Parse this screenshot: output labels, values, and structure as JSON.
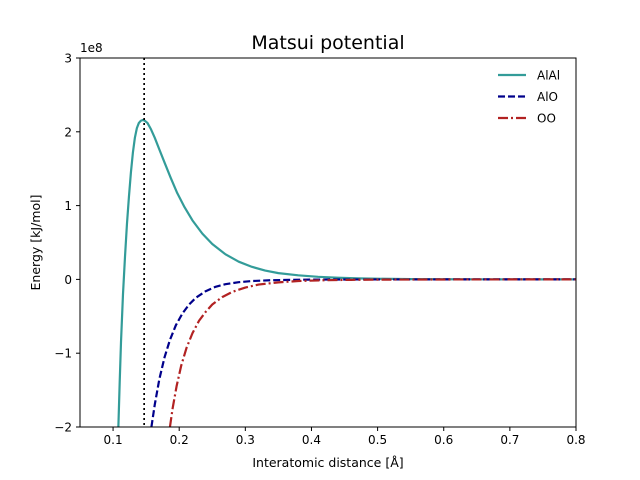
{
  "chart_data": {
    "type": "line",
    "title": "Matsui potential",
    "xlabel": "Interatomic distance [Å]",
    "ylabel": "Energy [kJ/mol]",
    "y_offset_text": "1e8",
    "xlim": [
      0.05,
      0.8
    ],
    "ylim": [
      -2,
      3
    ],
    "y_scale_factor": 100000000,
    "x_ticks": [
      0.1,
      0.2,
      0.3,
      0.4,
      0.5,
      0.6,
      0.7,
      0.8
    ],
    "x_tick_labels": [
      "0.1",
      "0.2",
      "0.3",
      "0.4",
      "0.5",
      "0.6",
      "0.7",
      "0.8"
    ],
    "y_ticks": [
      -2,
      -1,
      0,
      1,
      2,
      3
    ],
    "y_tick_labels": [
      "−2",
      "−1",
      "0",
      "1",
      "2",
      "3"
    ],
    "grid": false,
    "legend_position": "top-right",
    "vline_x": 0.147,
    "series": [
      {
        "name": "AlAl",
        "color": "#339c99",
        "dash": "solid",
        "x": [
          0.108,
          0.11,
          0.112,
          0.115,
          0.118,
          0.121,
          0.124,
          0.127,
          0.13,
          0.133,
          0.136,
          0.139,
          0.142,
          0.145,
          0.148,
          0.152,
          0.157,
          0.163,
          0.17,
          0.178,
          0.187,
          0.197,
          0.208,
          0.22,
          0.235,
          0.25,
          0.27,
          0.29,
          0.31,
          0.33,
          0.35,
          0.38,
          0.41,
          0.44,
          0.47,
          0.5,
          0.55,
          0.6,
          0.65,
          0.7,
          0.75,
          0.8
        ],
        "y": [
          -2.0,
          -1.4,
          -0.85,
          -0.2,
          0.3,
          0.75,
          1.12,
          1.45,
          1.72,
          1.92,
          2.05,
          2.12,
          2.15,
          2.16,
          2.15,
          2.12,
          2.04,
          1.92,
          1.76,
          1.58,
          1.38,
          1.17,
          0.98,
          0.8,
          0.62,
          0.48,
          0.34,
          0.24,
          0.17,
          0.12,
          0.085,
          0.055,
          0.035,
          0.022,
          0.014,
          0.009,
          0.004,
          0.002,
          0.001,
          0.0005,
          0.0002,
          0.0001
        ]
      },
      {
        "name": "AlO",
        "color": "#00008b",
        "dash": "dashed",
        "x": [
          0.158,
          0.163,
          0.17,
          0.178,
          0.186,
          0.195,
          0.205,
          0.215,
          0.225,
          0.24,
          0.255,
          0.27,
          0.29,
          0.31,
          0.34,
          0.37,
          0.4,
          0.45,
          0.5,
          0.6,
          0.7,
          0.8
        ],
        "y": [
          -2.0,
          -1.7,
          -1.35,
          -1.05,
          -0.82,
          -0.62,
          -0.46,
          -0.34,
          -0.25,
          -0.16,
          -0.1,
          -0.065,
          -0.038,
          -0.022,
          -0.011,
          -0.006,
          -0.003,
          -0.001,
          -0.0005,
          -0.0001,
          0,
          0
        ]
      },
      {
        "name": "OO",
        "color": "#b22222",
        "dash": "dashdot",
        "x": [
          0.186,
          0.19,
          0.196,
          0.203,
          0.211,
          0.22,
          0.23,
          0.24,
          0.25,
          0.265,
          0.28,
          0.3,
          0.32,
          0.35,
          0.38,
          0.42,
          0.46,
          0.5,
          0.6,
          0.7,
          0.8
        ],
        "y": [
          -2.0,
          -1.75,
          -1.45,
          -1.17,
          -0.93,
          -0.73,
          -0.56,
          -0.44,
          -0.34,
          -0.24,
          -0.17,
          -0.11,
          -0.07,
          -0.04,
          -0.022,
          -0.011,
          -0.006,
          -0.003,
          -0.001,
          -0.0002,
          0
        ]
      }
    ]
  }
}
